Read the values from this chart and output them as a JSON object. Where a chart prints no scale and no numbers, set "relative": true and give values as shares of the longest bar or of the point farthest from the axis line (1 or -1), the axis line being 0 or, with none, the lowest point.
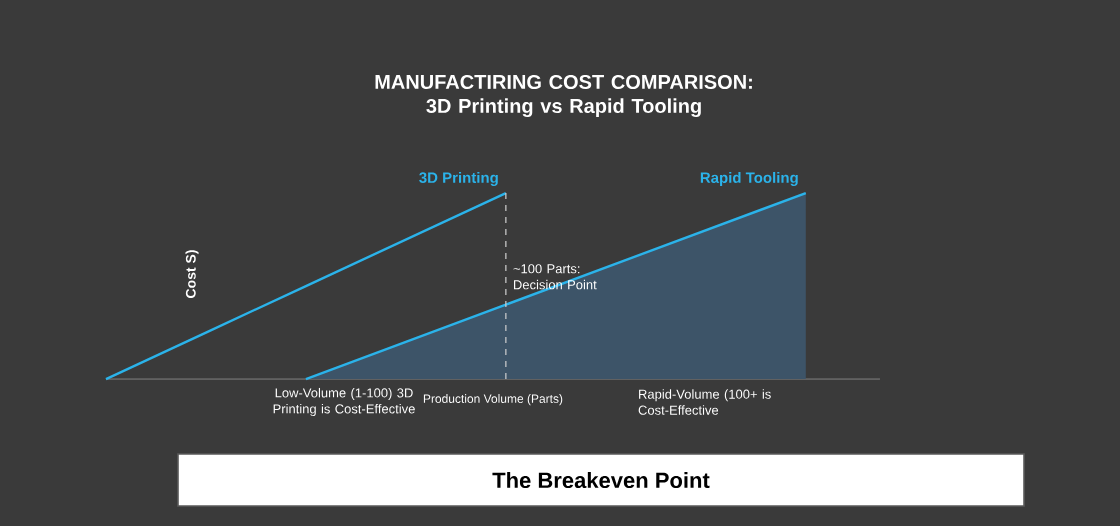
{
  "chart_data": {
    "type": "line",
    "title": "MANUFACTIRING COST COMPARISON: 3D Printing vs Rapid Tooling",
    "xlabel": "Production Volume (Parts)",
    "ylabel": "Cost S)",
    "relative": true,
    "legend": false,
    "categories": [
      null,
      null,
      null,
      null,
      null,
      null,
      null,
      null
    ],
    "series": [
      {
        "name": "3D Printing",
        "color": "#2bb3ea",
        "values": [
          0,
          0.25,
          0.5,
          0.75,
          1,
          null,
          null,
          null
        ]
      },
      {
        "name": "Rapid Tooling",
        "type": "area",
        "color": "#2bb3ea",
        "values": [
          null,
          null,
          0,
          0.2,
          0.4,
          0.6,
          0.8,
          1
        ]
      }
    ],
    "annotations": [
      "~100 Parts: Decision Point",
      "Low-Volume (1-100) 3D Printing is Cost-Effective",
      "Rapid-Volume (100+ is Cost-Effective",
      "The Breakeven Point"
    ]
  }
}
